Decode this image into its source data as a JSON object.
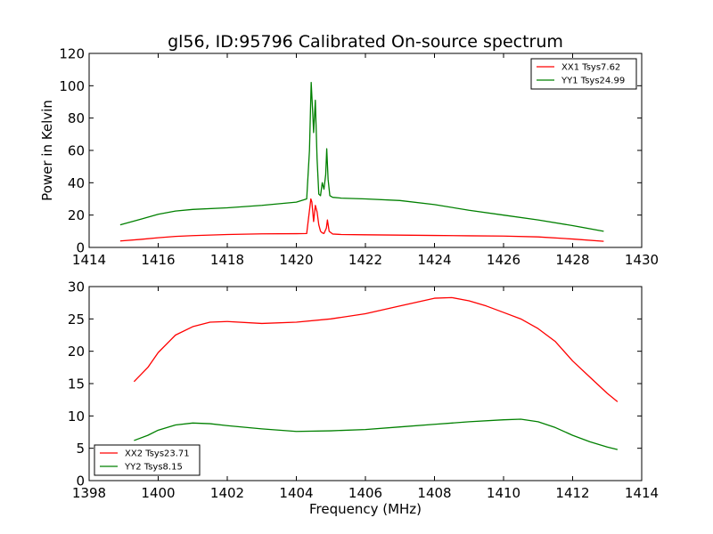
{
  "figure": {
    "title": "gl56, ID:95796 Calibrated On-source spectrum",
    "colors": {
      "red": "#ff0000",
      "green": "#008000"
    }
  },
  "chart_data": [
    {
      "type": "line",
      "title": "gl56, ID:95796 Calibrated On-source spectrum",
      "xlabel": "",
      "ylabel": "Power in Kelvin",
      "xlim": [
        1414,
        1430
      ],
      "ylim": [
        0,
        120
      ],
      "xticks": [
        1414,
        1416,
        1418,
        1420,
        1422,
        1424,
        1426,
        1428,
        1430
      ],
      "yticks": [
        0,
        20,
        40,
        60,
        80,
        100,
        120
      ],
      "grid": false,
      "legend": "top-right",
      "series": [
        {
          "name": "XX1 Tsys7.62",
          "color": "#ff0000",
          "x": [
            1414.9,
            1415.5,
            1416.0,
            1416.5,
            1417.0,
            1418.0,
            1419.0,
            1420.0,
            1420.3,
            1420.42,
            1420.45,
            1420.5,
            1420.55,
            1420.6,
            1420.65,
            1420.7,
            1420.75,
            1420.8,
            1420.87,
            1420.9,
            1420.95,
            1421.05,
            1421.3,
            1422.0,
            1423.0,
            1424.0,
            1425.0,
            1426.0,
            1427.0,
            1428.0,
            1428.9
          ],
          "y": [
            4.0,
            5.0,
            6.0,
            6.8,
            7.3,
            8.0,
            8.4,
            8.5,
            8.6,
            30.0,
            28.0,
            16.0,
            26.0,
            22.0,
            14.0,
            10.0,
            9.0,
            8.6,
            12.0,
            17.0,
            10.0,
            8.3,
            8.0,
            7.8,
            7.6,
            7.4,
            7.2,
            7.0,
            6.5,
            5.2,
            3.8
          ]
        },
        {
          "name": "YY1 Tsys24.99",
          "color": "#008000",
          "x": [
            1414.9,
            1415.5,
            1416.0,
            1416.5,
            1417.0,
            1418.0,
            1419.0,
            1420.0,
            1420.3,
            1420.38,
            1420.43,
            1420.47,
            1420.5,
            1420.55,
            1420.6,
            1420.65,
            1420.7,
            1420.75,
            1420.8,
            1420.85,
            1420.88,
            1420.92,
            1420.97,
            1421.05,
            1421.3,
            1422.0,
            1423.0,
            1424.0,
            1425.0,
            1426.0,
            1427.0,
            1428.0,
            1428.9
          ],
          "y": [
            14.0,
            17.5,
            20.5,
            22.5,
            23.5,
            24.5,
            26.0,
            28.0,
            30.0,
            60.0,
            102.0,
            85.0,
            71.0,
            91.0,
            55.0,
            33.0,
            32.0,
            40.0,
            36.0,
            45.0,
            61.0,
            42.0,
            32.0,
            31.0,
            30.5,
            30.0,
            29.0,
            26.5,
            23.0,
            20.0,
            17.0,
            13.5,
            10.0
          ]
        }
      ]
    },
    {
      "type": "line",
      "title": "",
      "xlabel": "Frequency (MHz)",
      "ylabel": "",
      "xlim": [
        1398,
        1414
      ],
      "ylim": [
        0,
        30
      ],
      "xticks": [
        1398,
        1400,
        1402,
        1404,
        1406,
        1408,
        1410,
        1412,
        1414
      ],
      "yticks": [
        0,
        5,
        10,
        15,
        20,
        25,
        30
      ],
      "grid": false,
      "legend": "bottom-left",
      "series": [
        {
          "name": "XX2 Tsys23.71",
          "color": "#ff0000",
          "x": [
            1399.3,
            1399.7,
            1400.0,
            1400.5,
            1401.0,
            1401.5,
            1402.0,
            1403.0,
            1404.0,
            1405.0,
            1406.0,
            1407.0,
            1408.0,
            1408.5,
            1409.0,
            1409.5,
            1410.0,
            1410.5,
            1411.0,
            1411.5,
            1412.0,
            1412.5,
            1413.0,
            1413.3
          ],
          "y": [
            15.3,
            17.5,
            19.8,
            22.5,
            23.8,
            24.5,
            24.6,
            24.3,
            24.5,
            25.0,
            25.8,
            27.0,
            28.2,
            28.3,
            27.8,
            27.0,
            26.0,
            25.0,
            23.5,
            21.5,
            18.5,
            16.0,
            13.5,
            12.2
          ]
        },
        {
          "name": "YY2 Tsys8.15",
          "color": "#008000",
          "x": [
            1399.3,
            1399.7,
            1400.0,
            1400.5,
            1401.0,
            1401.5,
            1402.0,
            1403.0,
            1404.0,
            1405.0,
            1406.0,
            1407.0,
            1408.0,
            1409.0,
            1410.0,
            1410.5,
            1411.0,
            1411.5,
            1412.0,
            1412.5,
            1413.0,
            1413.3
          ],
          "y": [
            6.2,
            7.0,
            7.8,
            8.6,
            8.9,
            8.8,
            8.5,
            8.0,
            7.6,
            7.7,
            7.9,
            8.3,
            8.7,
            9.1,
            9.4,
            9.5,
            9.1,
            8.2,
            7.0,
            6.0,
            5.2,
            4.8
          ]
        }
      ]
    }
  ]
}
